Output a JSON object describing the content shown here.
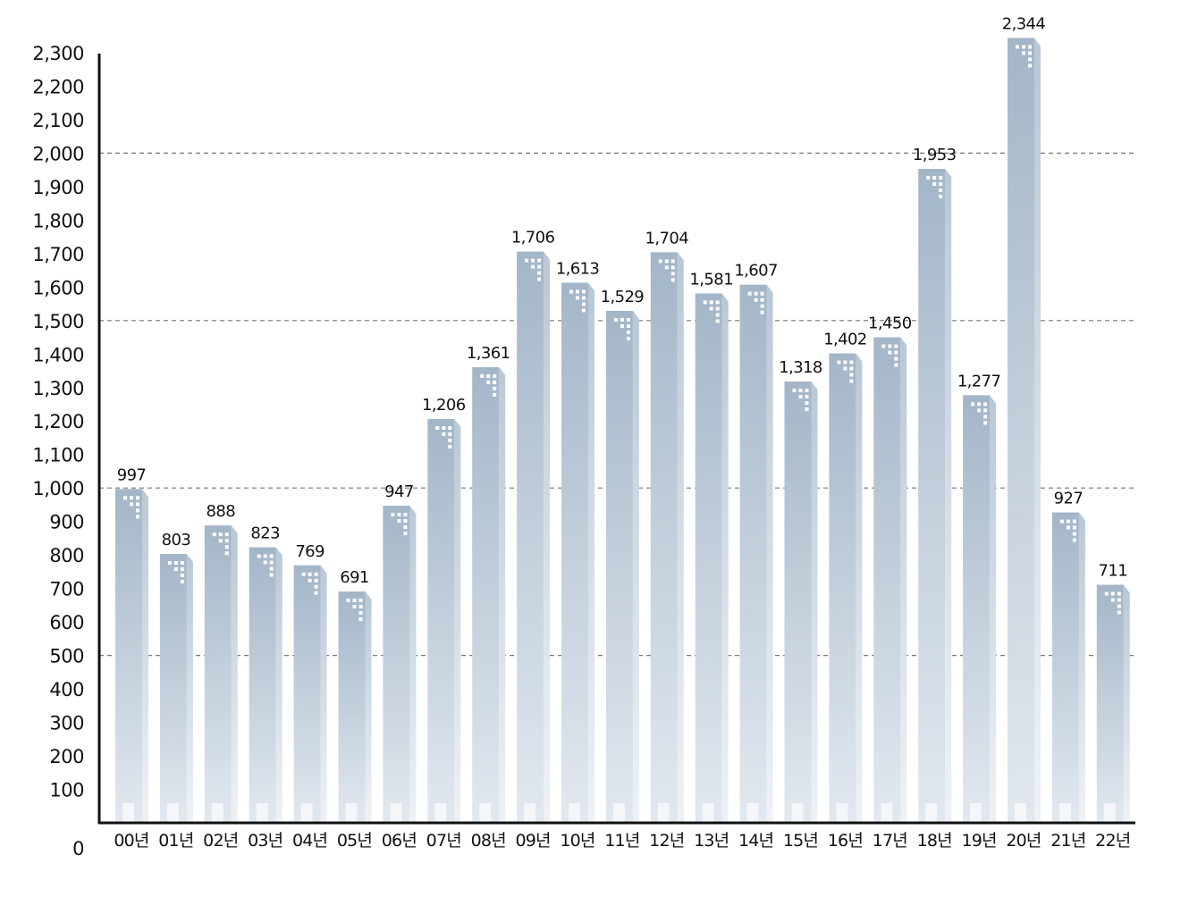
{
  "chart_data": {
    "type": "bar",
    "categories": [
      "00년",
      "01년",
      "02년",
      "03년",
      "04년",
      "05년",
      "06년",
      "07년",
      "08년",
      "09년",
      "10년",
      "11년",
      "12년",
      "13년",
      "14년",
      "15년",
      "16년",
      "17년",
      "18년",
      "19년",
      "20년",
      "21년",
      "22년"
    ],
    "values": [
      997,
      803,
      888,
      823,
      769,
      691,
      947,
      1206,
      1361,
      1706,
      1613,
      1529,
      1704,
      1581,
      1607,
      1318,
      1402,
      1450,
      1953,
      1277,
      2344,
      927,
      711
    ],
    "value_labels": [
      "997",
      "803",
      "888",
      "823",
      "769",
      "691",
      "947",
      "1,206",
      "1,361",
      "1,706",
      "1,613",
      "1,529",
      "1,704",
      "1,581",
      "1,607",
      "1,318",
      "1,402",
      "1,450",
      "1,953",
      "1,277",
      "2,344",
      "927",
      "711"
    ],
    "y_ticks": [
      0,
      100,
      200,
      300,
      400,
      500,
      600,
      700,
      800,
      900,
      1000,
      1100,
      1200,
      1300,
      1400,
      1500,
      1600,
      1700,
      1800,
      1900,
      2000,
      2100,
      2200,
      2300
    ],
    "y_tick_labels": [
      "0",
      "100",
      "200",
      "300",
      "400",
      "500",
      "600",
      "700",
      "800",
      "900",
      "1,000",
      "1,100",
      "1,200",
      "1,300",
      "1,400",
      "1,500",
      "1,600",
      "1,700",
      "1,800",
      "1,900",
      "2,000",
      "2,100",
      "2,200",
      "2,300"
    ],
    "ylim": [
      0,
      2300
    ],
    "grid_lines": [
      500,
      1000,
      1500,
      2000
    ],
    "title": "",
    "xlabel": "",
    "ylabel": "",
    "legend": "none",
    "colors": {
      "bar_top": "#a3b6c8",
      "bar_bottom": "#e2e8ef",
      "bar_side": "#c9d4de",
      "window": "#ffffff",
      "axis": "#111111",
      "grid": "#777777"
    }
  }
}
